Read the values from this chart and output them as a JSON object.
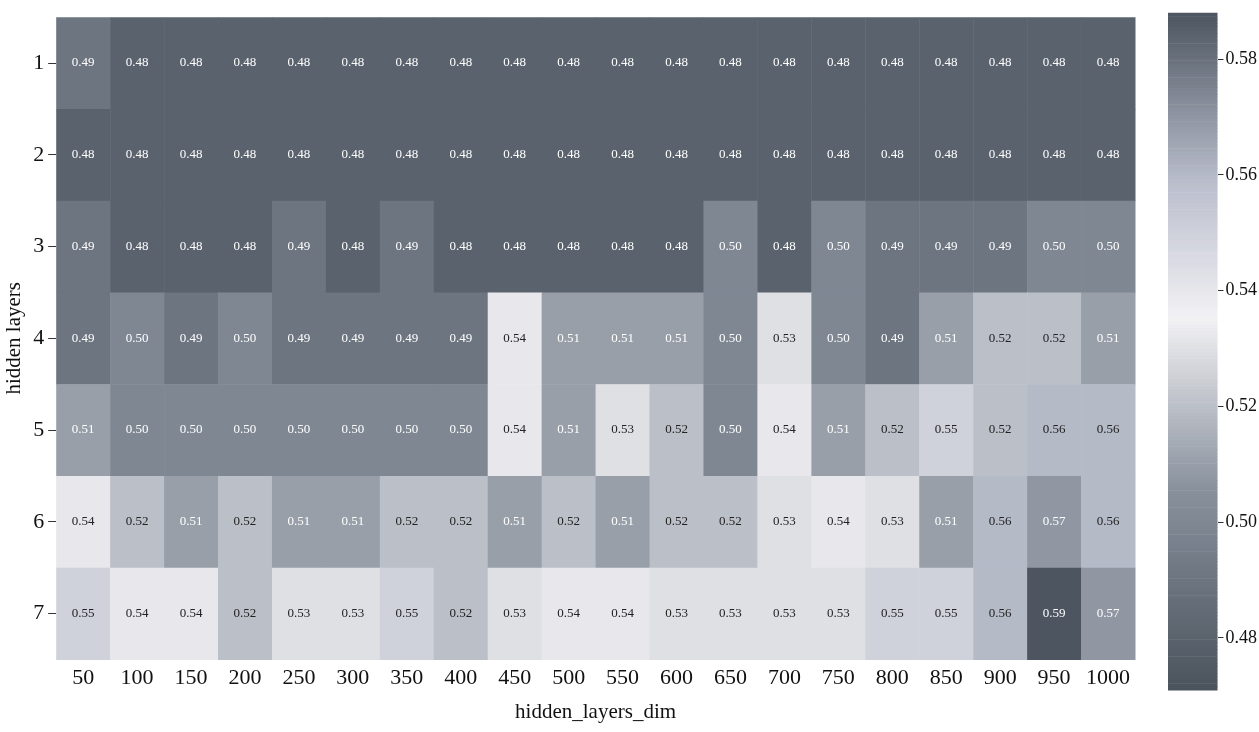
{
  "chart_data": {
    "type": "heatmap",
    "xlabel": "hidden_layers_dim",
    "ylabel": "hidden layers",
    "categories": [
      "50",
      "100",
      "150",
      "200",
      "250",
      "300",
      "350",
      "400",
      "450",
      "500",
      "550",
      "600",
      "650",
      "700",
      "750",
      "800",
      "850",
      "900",
      "950",
      "1000"
    ],
    "y_categories": [
      "1",
      "2",
      "3",
      "4",
      "5",
      "6",
      "7"
    ],
    "cells": [
      [
        0.49,
        0.48,
        0.48,
        0.48,
        0.48,
        0.48,
        0.48,
        0.48,
        0.48,
        0.48,
        0.48,
        0.48,
        0.48,
        0.48,
        0.48,
        0.48,
        0.48,
        0.48,
        0.48,
        0.48
      ],
      [
        0.48,
        0.48,
        0.48,
        0.48,
        0.48,
        0.48,
        0.48,
        0.48,
        0.48,
        0.48,
        0.48,
        0.48,
        0.48,
        0.48,
        0.48,
        0.48,
        0.48,
        0.48,
        0.48,
        0.48
      ],
      [
        0.49,
        0.48,
        0.48,
        0.48,
        0.49,
        0.48,
        0.49,
        0.48,
        0.48,
        0.48,
        0.48,
        0.48,
        0.5,
        0.48,
        0.5,
        0.49,
        0.49,
        0.49,
        0.5,
        0.5
      ],
      [
        0.49,
        0.5,
        0.49,
        0.5,
        0.49,
        0.49,
        0.49,
        0.49,
        0.54,
        0.51,
        0.51,
        0.51,
        0.5,
        0.53,
        0.5,
        0.49,
        0.51,
        0.52,
        0.52,
        0.51
      ],
      [
        0.51,
        0.5,
        0.5,
        0.5,
        0.5,
        0.5,
        0.5,
        0.5,
        0.54,
        0.51,
        0.53,
        0.52,
        0.5,
        0.54,
        0.51,
        0.52,
        0.55,
        0.52,
        0.56,
        0.56
      ],
      [
        0.54,
        0.52,
        0.51,
        0.52,
        0.51,
        0.51,
        0.52,
        0.52,
        0.51,
        0.52,
        0.51,
        0.52,
        0.52,
        0.53,
        0.54,
        0.53,
        0.51,
        0.56,
        0.57,
        0.56
      ],
      [
        0.55,
        0.54,
        0.54,
        0.52,
        0.53,
        0.53,
        0.55,
        0.52,
        0.53,
        0.54,
        0.54,
        0.53,
        0.53,
        0.53,
        0.53,
        0.55,
        0.55,
        0.56,
        0.59,
        0.57
      ]
    ],
    "cell_labels": [
      [
        "0.49",
        "0.48",
        "0.48",
        "0.48",
        "0.48",
        "0.48",
        "0.48",
        "0.48",
        "0.48",
        "0.48",
        "0.48",
        "0.48",
        "0.48",
        "0.48",
        "0.48",
        "0.48",
        "0.48",
        "0.48",
        "0.48",
        "0.48"
      ],
      [
        "0.48",
        "0.48",
        "0.48",
        "0.48",
        "0.48",
        "0.48",
        "0.48",
        "0.48",
        "0.48",
        "0.48",
        "0.48",
        "0.48",
        "0.48",
        "0.48",
        "0.48",
        "0.48",
        "0.48",
        "0.48",
        "0.48",
        "0.48"
      ],
      [
        "0.49",
        "0.48",
        "0.48",
        "0.48",
        "0.49",
        "0.48",
        "0.49",
        "0.48",
        "0.48",
        "0.48",
        "0.48",
        "0.48",
        "0.50",
        "0.48",
        "0.50",
        "0.49",
        "0.49",
        "0.49",
        "0.50",
        "0.50"
      ],
      [
        "0.49",
        "0.50",
        "0.49",
        "0.50",
        "0.49",
        "0.49",
        "0.49",
        "0.49",
        "0.54",
        "0.51",
        "0.51",
        "0.51",
        "0.50",
        "0.53",
        "0.50",
        "0.49",
        "0.51",
        "0.52",
        "0.52",
        "0.51"
      ],
      [
        "0.51",
        "0.50",
        "0.50",
        "0.50",
        "0.50",
        "0.50",
        "0.50",
        "0.50",
        "0.54",
        "0.51",
        "0.53",
        "0.52",
        "0.50",
        "0.54",
        "0.51",
        "0.52",
        "0.55",
        "0.52",
        "0.56",
        "0.56"
      ],
      [
        "0.54",
        "0.52",
        "0.51",
        "0.52",
        "0.51",
        "0.51",
        "0.52",
        "0.52",
        "0.51",
        "0.52",
        "0.51",
        "0.52",
        "0.52",
        "0.53",
        "0.54",
        "0.53",
        "0.51",
        "0.56",
        "0.57",
        "0.56"
      ],
      [
        "0.55",
        "0.54",
        "0.54",
        "0.52",
        "0.53",
        "0.53",
        "0.55",
        "0.52",
        "0.53",
        "0.54",
        "0.54",
        "0.53",
        "0.53",
        "0.53",
        "0.53",
        "0.55",
        "0.55",
        "0.56",
        "0.59",
        "0.57"
      ]
    ],
    "clim": [
      0.471,
      0.588
    ],
    "cticks": [
      {
        "value": 0.48,
        "label": "0.48"
      },
      {
        "value": 0.5,
        "label": "0.50"
      },
      {
        "value": 0.52,
        "label": "0.52"
      },
      {
        "value": 0.54,
        "label": "0.54"
      },
      {
        "value": 0.56,
        "label": "0.56"
      },
      {
        "value": 0.58,
        "label": "0.58"
      }
    ]
  }
}
